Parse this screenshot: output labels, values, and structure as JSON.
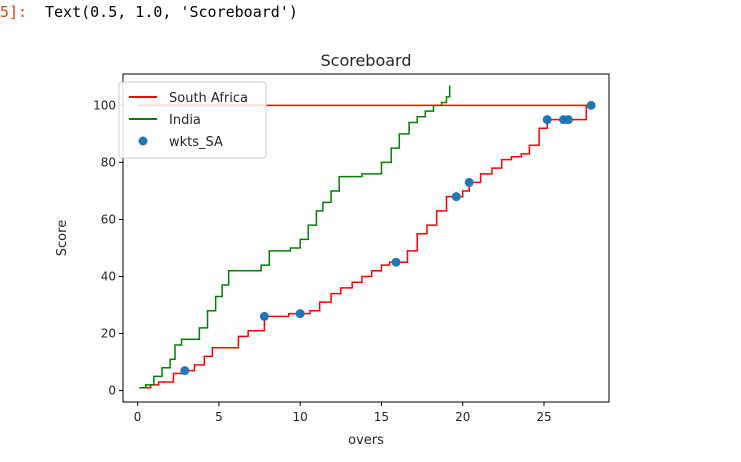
{
  "cell": {
    "prompt": "5]:",
    "output_text": "Text(0.5, 1.0, 'Scoreboard')"
  },
  "chart_data": {
    "type": "line",
    "title": "Scoreboard",
    "xlabel": "overs",
    "ylabel": "Score",
    "xlim": [
      -0.9,
      29.0
    ],
    "ylim": [
      -4,
      111
    ],
    "xticks": [
      0,
      5,
      10,
      15,
      20,
      25
    ],
    "yticks": [
      0,
      20,
      40,
      60,
      80,
      100
    ],
    "grid": false,
    "legend_position": "top-left",
    "series": [
      {
        "name": "South Africa",
        "kind": "step-line",
        "color": "#ff0000",
        "x": [
          0.1,
          0.4,
          0.8,
          1.3,
          2.2,
          2.9,
          3.5,
          4.1,
          4.6,
          5.3,
          6.2,
          6.8,
          7.8,
          8.4,
          9.3,
          10.0,
          10.6,
          11.2,
          11.9,
          12.5,
          13.2,
          13.8,
          14.4,
          15.0,
          15.5,
          15.9,
          16.6,
          17.2,
          17.8,
          18.4,
          19.0,
          19.5,
          20.0,
          20.4,
          21.1,
          21.8,
          22.4,
          23.0,
          23.6,
          24.1,
          24.7,
          25.2,
          25.8,
          26.4,
          27.0,
          27.6,
          28.0
        ],
        "y": [
          1,
          1,
          2,
          3,
          6,
          7,
          9,
          12,
          15,
          15,
          19,
          21,
          26,
          26,
          27,
          27,
          28,
          31,
          34,
          36,
          38,
          40,
          42,
          44,
          45,
          45,
          49,
          55,
          58,
          63,
          68,
          68,
          70,
          73,
          76,
          78,
          81,
          82,
          83,
          86,
          92,
          95,
          95,
          95,
          95,
          100,
          100
        ]
      },
      {
        "name": "India",
        "kind": "step-line",
        "color": "#008000",
        "x": [
          0.1,
          0.5,
          1.0,
          1.5,
          2.0,
          2.3,
          2.7,
          3.3,
          3.8,
          4.3,
          4.8,
          5.2,
          5.6,
          6.1,
          6.8,
          7.6,
          8.1,
          8.7,
          9.4,
          10.0,
          10.5,
          11.0,
          11.4,
          11.9,
          12.4,
          12.9,
          13.3,
          13.8,
          14.4,
          15.0,
          15.6,
          16.1,
          16.7,
          17.2,
          17.7,
          18.2,
          18.7,
          19.0,
          19.2
        ],
        "y": [
          1,
          2,
          5,
          8,
          11,
          16,
          18,
          18,
          22,
          28,
          33,
          37,
          42,
          42,
          42,
          44,
          49,
          49,
          50,
          53,
          58,
          63,
          66,
          70,
          75,
          75,
          75,
          76,
          76,
          80,
          85,
          90,
          94,
          96,
          98,
          100,
          101,
          103,
          107
        ]
      },
      {
        "name": "",
        "kind": "hline",
        "color": "#ff0000",
        "x": [
          0,
          28.0
        ],
        "y": [
          100,
          100
        ]
      },
      {
        "name": "wkts_SA",
        "kind": "scatter",
        "color": "#1f77b4",
        "x": [
          2.9,
          7.8,
          10.0,
          15.9,
          19.6,
          20.4,
          25.2,
          26.2,
          26.5,
          27.9
        ],
        "y": [
          7,
          26,
          27,
          45,
          68,
          73,
          95,
          95,
          95,
          100
        ]
      }
    ]
  }
}
